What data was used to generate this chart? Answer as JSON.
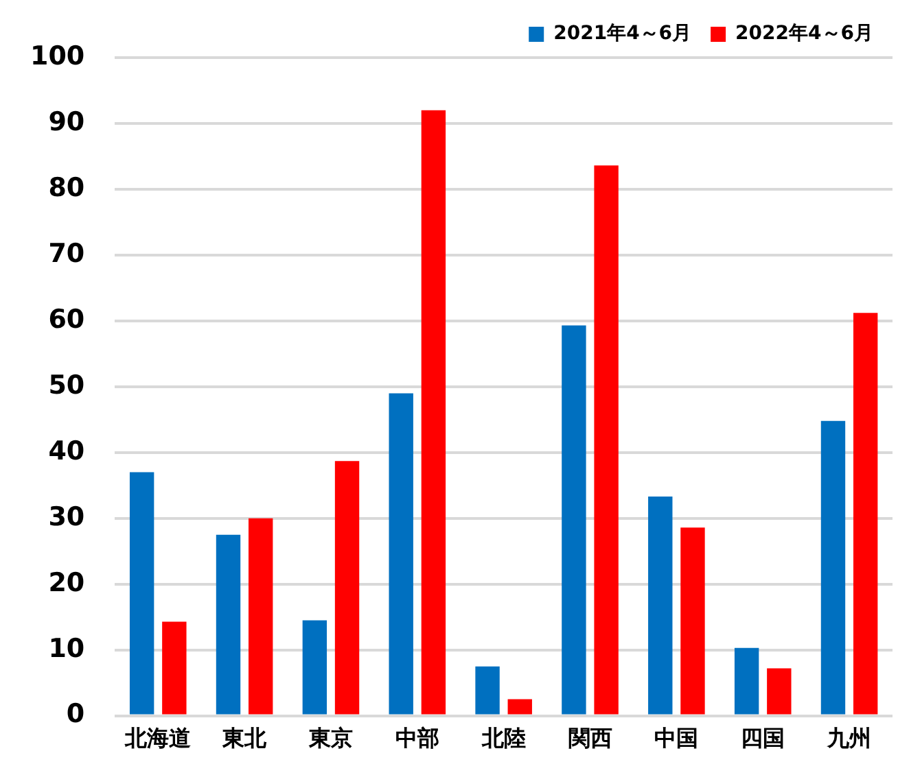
{
  "chart_data": {
    "type": "bar",
    "categories": [
      "北海道",
      "東北",
      "東京",
      "中部",
      "北陸",
      "関西",
      "中国",
      "四国",
      "九州"
    ],
    "series": [
      {
        "name": "2021年4～6月",
        "color": "#0070c0",
        "values": [
          37,
          27.5,
          14.5,
          49,
          7.5,
          59.3,
          33.3,
          10.3,
          44.8
        ]
      },
      {
        "name": "2022年4～6月",
        "color": "#ff0000",
        "values": [
          14.3,
          30,
          38.7,
          92,
          2.5,
          83.6,
          28.6,
          7.2,
          61.2
        ]
      }
    ],
    "ylim": [
      0,
      100
    ],
    "yticks": [
      0,
      10,
      20,
      30,
      40,
      50,
      60,
      70,
      80,
      90,
      100
    ],
    "grid": "y",
    "legend": "top right"
  }
}
